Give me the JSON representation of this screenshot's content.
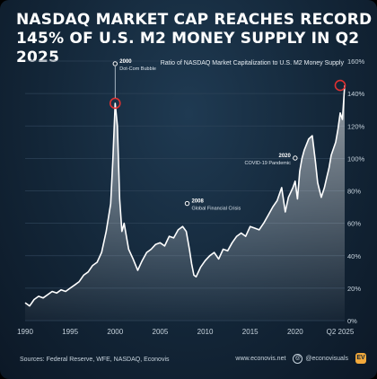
{
  "title": {
    "line1": "NASDAQ MARKET CAP REACHES RECORD",
    "line2": "145% OF U.S. M2 MONEY SUPPLY IN Q2 2025"
  },
  "footer": {
    "sources": "Sources: Federal Reserve, WFE, NASDAQ, Econovis",
    "website": "www.econovis.net",
    "handle": "@econovisuals",
    "logo_text": "EV"
  },
  "colors": {
    "line": "#ffffff",
    "highlight": "#e03131",
    "grid": "#2c4257",
    "text": "#c8d4de"
  },
  "chart_data": {
    "type": "area",
    "legend": "Ratio of NASDAQ Market Capitalization to U.S. M2 Money Supply",
    "xlim": [
      1990,
      2025.5
    ],
    "ylim": [
      0,
      160
    ],
    "y_ticks": [
      0,
      20,
      40,
      60,
      80,
      100,
      120,
      140,
      160
    ],
    "y_tick_labels": [
      "0%",
      "20%",
      "40%",
      "60%",
      "80%",
      "100%",
      "120%",
      "140%",
      "160%"
    ],
    "x_ticks": [
      1990,
      1995,
      2000,
      2005,
      2010,
      2015,
      2020,
      2025
    ],
    "x_tick_labels": [
      "1990",
      "1995",
      "2000",
      "2005",
      "2010",
      "2015",
      "2020",
      "Q2 2025"
    ],
    "grid": true,
    "x": [
      1990,
      1990.5,
      1991,
      1991.5,
      1992,
      1992.5,
      1993,
      1993.5,
      1994,
      1994.5,
      1995,
      1995.5,
      1996,
      1996.5,
      1997,
      1997.5,
      1998,
      1998.5,
      1999,
      1999.5,
      1999.75,
      2000,
      2000.25,
      2000.5,
      2000.75,
      2001,
      2001.5,
      2002,
      2002.5,
      2002.75,
      2003,
      2003.5,
      2004,
      2004.5,
      2005,
      2005.5,
      2006,
      2006.5,
      2007,
      2007.5,
      2007.9,
      2008.25,
      2008.5,
      2008.75,
      2009,
      2009.5,
      2010,
      2010.5,
      2011,
      2011.5,
      2012,
      2012.5,
      2013,
      2013.5,
      2014,
      2014.5,
      2015,
      2015.5,
      2016,
      2016.5,
      2017,
      2017.5,
      2018,
      2018.5,
      2018.9,
      2019.25,
      2019.75,
      2020,
      2020.25,
      2020.5,
      2020.75,
      2021,
      2021.5,
      2021.9,
      2022.25,
      2022.5,
      2022.9,
      2023.25,
      2023.5,
      2023.75,
      2024,
      2024.5,
      2024.75,
      2025,
      2025.25,
      2025.5
    ],
    "values": [
      11,
      9,
      13,
      15,
      14,
      16,
      18,
      17,
      19,
      18,
      20,
      22,
      24,
      28,
      30,
      34,
      36,
      42,
      55,
      72,
      100,
      134,
      120,
      75,
      55,
      60,
      44,
      38,
      31,
      34,
      37,
      42,
      44,
      47,
      48,
      46,
      52,
      51,
      56,
      58,
      55,
      44,
      35,
      28,
      27,
      33,
      37,
      40,
      42,
      38,
      44,
      43,
      48,
      52,
      54,
      52,
      58,
      57,
      56,
      60,
      65,
      70,
      74,
      82,
      67,
      76,
      82,
      86,
      75,
      92,
      100,
      105,
      112,
      114,
      98,
      85,
      76,
      82,
      88,
      94,
      102,
      110,
      118,
      128,
      124,
      145
    ],
    "annotations": [
      {
        "x": 2000,
        "y": 134,
        "year": "2000",
        "label": "Dot-Com Bubble",
        "highlight": true
      },
      {
        "x": 2008,
        "y": 70,
        "year": "2008",
        "label": "Global Financial Crisis",
        "highlight": false
      },
      {
        "x": 2020,
        "y": 98,
        "year": "2020",
        "label": "COVID-19 Pandemic",
        "highlight": false
      },
      {
        "x": 2025,
        "y": 145,
        "year": "",
        "label": "",
        "highlight": true
      }
    ]
  }
}
